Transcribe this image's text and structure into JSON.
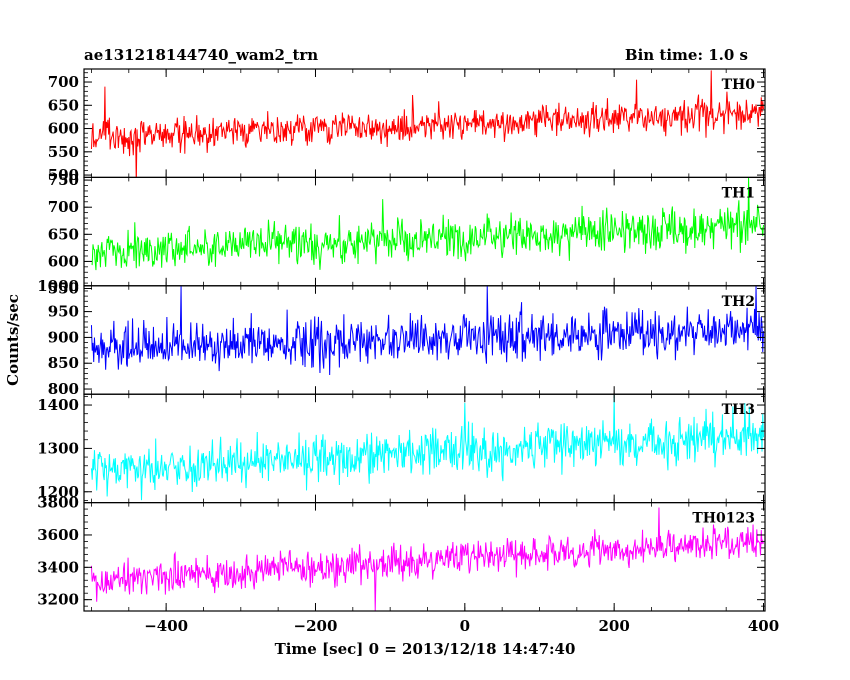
{
  "header": {
    "title": "ae131218144740_wam2_trn",
    "bin_time": "Bin time: 1.0 s"
  },
  "chart_data": {
    "type": "line",
    "xlabel": "Time [sec] 0 = 2013/12/18 14:47:40",
    "ylabel": "Counts/sec",
    "xlim": [
      -510,
      402
    ],
    "x_ticks": [
      "−400",
      "−200",
      "0",
      "200",
      "400"
    ],
    "x_tick_values": [
      -400,
      -200,
      0,
      200,
      400
    ],
    "bin_seconds": 1.0,
    "panels": [
      {
        "name": "TH0",
        "color": "#ff0000",
        "ylim": [
          495,
          728
        ],
        "y_ticks": [
          "500",
          "550",
          "600",
          "650",
          "700"
        ],
        "y_tick_values": [
          500,
          550,
          600,
          650,
          700
        ],
        "trend": {
          "start": 580,
          "end": 635
        },
        "noise": 25,
        "spikes": [
          {
            "x": -482,
            "y": 690
          },
          {
            "x": -440,
            "y": 480
          },
          {
            "x": -70,
            "y": 672
          },
          {
            "x": 230,
            "y": 705
          },
          {
            "x": 330,
            "y": 725
          }
        ]
      },
      {
        "name": "TH1",
        "color": "#00ff00",
        "ylim": [
          555,
          755
        ],
        "y_ticks": [
          "550",
          "600",
          "650",
          "700",
          "750"
        ],
        "y_tick_values": [
          550,
          600,
          650,
          700,
          750
        ],
        "trend": {
          "start": 620,
          "end": 665
        },
        "noise": 27,
        "spikes": [
          {
            "x": -110,
            "y": 715
          },
          {
            "x": 380,
            "y": 755
          }
        ]
      },
      {
        "name": "TH2",
        "color": "#0000ff",
        "ylim": [
          790,
          1000
        ],
        "y_ticks": [
          "800",
          "850",
          "900",
          "950",
          "1000"
        ],
        "y_tick_values": [
          800,
          850,
          900,
          950,
          1000
        ],
        "trend": {
          "start": 878,
          "end": 915
        },
        "noise": 32,
        "spikes": [
          {
            "x": -380,
            "y": 1000
          },
          {
            "x": 30,
            "y": 1000
          },
          {
            "x": 390,
            "y": 1000
          }
        ]
      },
      {
        "name": "TH3",
        "color": "#00ffff",
        "ylim": [
          1175,
          1425
        ],
        "y_ticks": [
          "1200",
          "1300",
          "1400"
        ],
        "y_tick_values": [
          1200,
          1300,
          1400
        ],
        "trend": {
          "start": 1250,
          "end": 1330
        },
        "noise": 38,
        "spikes": [
          {
            "x": 0,
            "y": 1405
          },
          {
            "x": 200,
            "y": 1425
          }
        ]
      },
      {
        "name": "TH0123",
        "color": "#ff00ff",
        "ylim": [
          3130,
          3800
        ],
        "y_ticks": [
          "3200",
          "3400",
          "3600",
          "3800"
        ],
        "y_tick_values": [
          3200,
          3400,
          3600,
          3800
        ],
        "trend": {
          "start": 3320,
          "end": 3560
        },
        "noise": 75,
        "spikes": [
          {
            "x": -120,
            "y": 3130
          },
          {
            "x": 260,
            "y": 3770
          }
        ]
      }
    ]
  }
}
